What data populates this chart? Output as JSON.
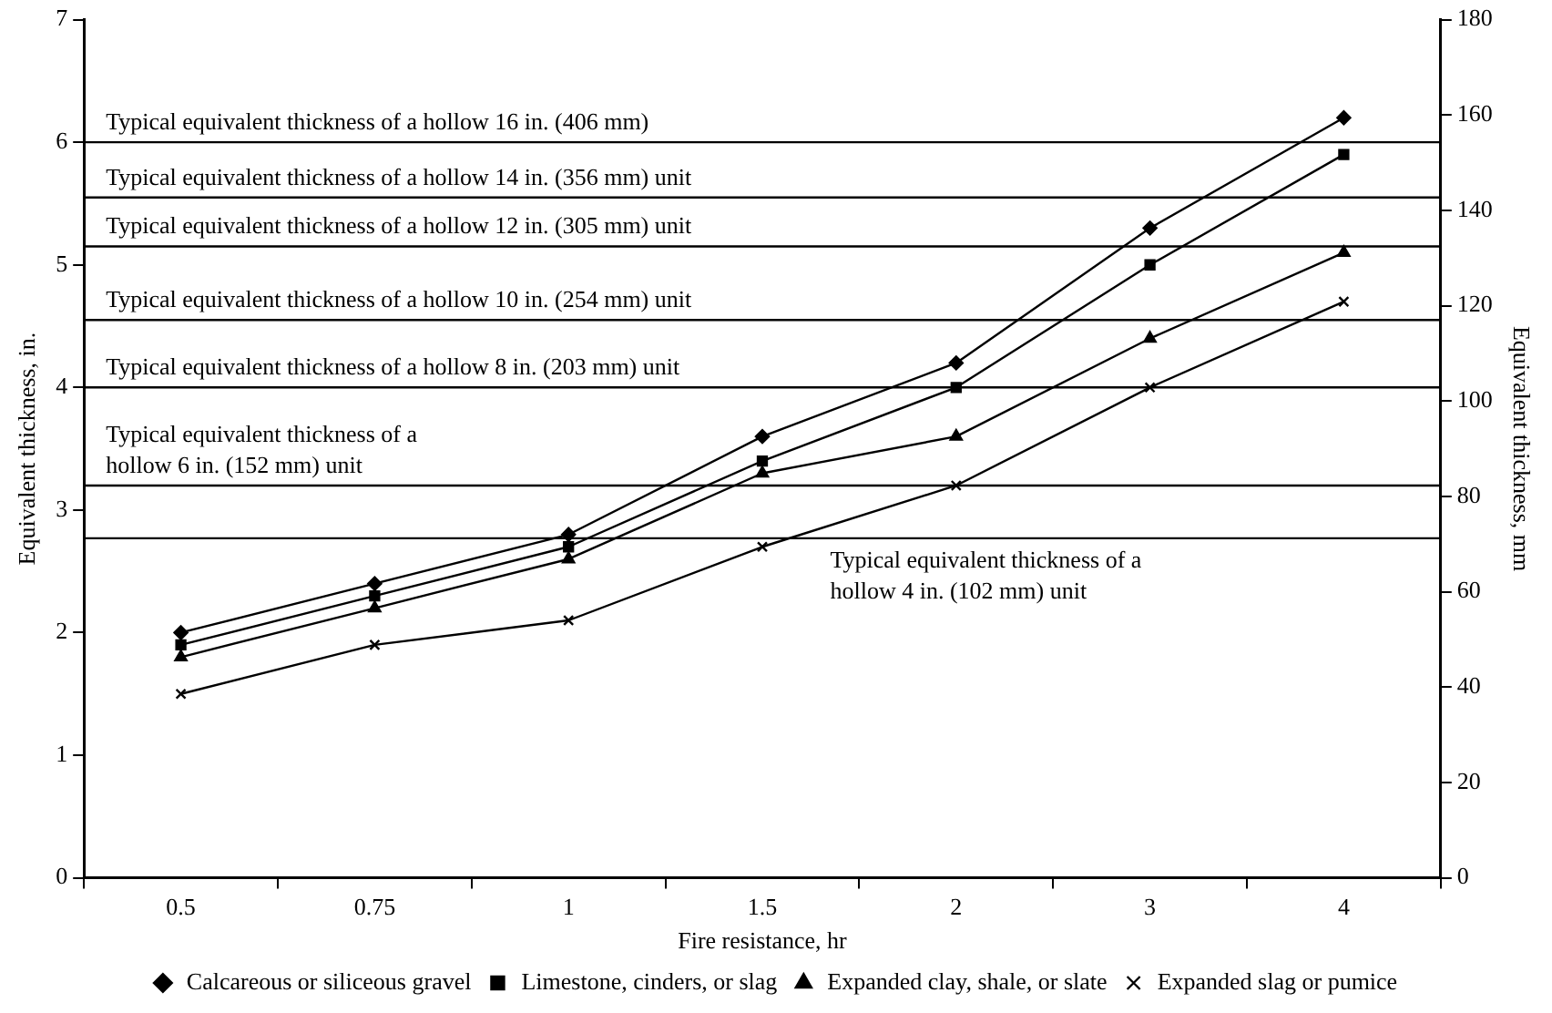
{
  "chart_data": {
    "type": "line",
    "xlabel": "Fire resistance, hr",
    "ylabel": "Equivalent thickness, in.",
    "y2label": "Equivalent thickness, mm",
    "categories": [
      "0.5",
      "0.75",
      "1",
      "1.5",
      "2",
      "3",
      "4"
    ],
    "series": [
      {
        "name": "Calcareous or siliceous gravel",
        "color": "#000000",
        "marker": "diamond",
        "values": [
          2.0,
          2.4,
          2.8,
          3.6,
          4.2,
          5.3,
          6.2
        ]
      },
      {
        "name": "Limestone, cinders, or slag",
        "color": "#000000",
        "marker": "square",
        "values": [
          1.9,
          2.3,
          2.7,
          3.4,
          4.0,
          5.0,
          5.9
        ]
      },
      {
        "name": "Expanded clay, shale, or slate",
        "color": "#000000",
        "marker": "triangle",
        "values": [
          1.8,
          2.2,
          2.6,
          3.3,
          3.6,
          4.4,
          5.1
        ]
      },
      {
        "name": "Expanded slag or pumice",
        "color": "#000000",
        "marker": "cross",
        "values": [
          1.5,
          1.9,
          2.1,
          2.7,
          3.2,
          4.0,
          4.7
        ]
      }
    ],
    "ylim": [
      0,
      7
    ],
    "yticks": [
      0,
      1,
      2,
      3,
      4,
      5,
      6,
      7
    ],
    "y2lim": [
      0,
      180
    ],
    "y2ticks": [
      0,
      20,
      40,
      60,
      80,
      100,
      120,
      140,
      160,
      180
    ],
    "ref_lines": [
      {
        "axis": "y",
        "value": 6.0,
        "label": "Typical equivalent thickness of a hollow 16 in. (406 mm)"
      },
      {
        "axis": "y",
        "value": 5.55,
        "label": "Typical equivalent thickness of a hollow 14 in. (356 mm) unit"
      },
      {
        "axis": "y",
        "value": 5.15,
        "label": "Typical equivalent thickness of a hollow 12 in. (305 mm) unit"
      },
      {
        "axis": "y",
        "value": 4.55,
        "label": "Typical equivalent thickness of a hollow 10 in. (254 mm) unit"
      },
      {
        "axis": "y",
        "value": 4.0,
        "label": "Typical equivalent thickness of a hollow 8 in. (203 mm) unit"
      },
      {
        "axis": "y",
        "value": 3.2,
        "label": "Typical equivalent thickness of a\nhollow 6 in. (152 mm) unit"
      },
      {
        "axis": "y",
        "value": 2.77,
        "label": "Typical equivalent thickness of a\nhollow 4 in. (102 mm) unit"
      }
    ],
    "grid": false,
    "legend": "bottom",
    "line_style": "solid"
  }
}
